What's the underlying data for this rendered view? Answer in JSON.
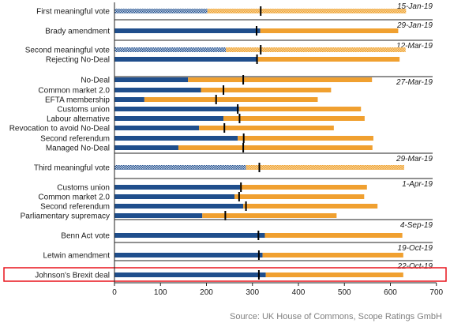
{
  "chart_data": {
    "type": "bar",
    "orientation": "horizontal",
    "stacked": true,
    "xlim": [
      0,
      700
    ],
    "xticks": [
      0,
      100,
      200,
      300,
      400,
      500,
      600,
      700
    ],
    "grid": false,
    "colors": {
      "first": "#1f4e8c",
      "second": "#f0a030",
      "marker": "#000000",
      "highlight": "#e8141c"
    },
    "groups": [
      {
        "date": "15-Jan-19",
        "bars": [
          {
            "label": "First meaningful vote",
            "first": 202,
            "second": 432,
            "marker": 318,
            "hatched": true
          }
        ]
      },
      {
        "date": "29-Jan-19",
        "bars": [
          {
            "label": "Brady amendment",
            "first": 317,
            "second": 300,
            "marker": 309,
            "hatched": false
          }
        ]
      },
      {
        "date": "12-Mar-19",
        "bars": [
          {
            "label": "Second meaningful vote",
            "first": 242,
            "second": 391,
            "marker": 318,
            "hatched": true
          },
          {
            "label": "Rejecting No-Deal",
            "first": 312,
            "second": 308,
            "marker": 310,
            "hatched": false
          }
        ]
      },
      {
        "date": "27-Mar-19",
        "bars": [
          {
            "label": "No-Deal",
            "first": 160,
            "second": 400,
            "marker": 280,
            "hatched": false
          },
          {
            "label": "Common market 2.0",
            "first": 188,
            "second": 283,
            "marker": 237,
            "hatched": false
          },
          {
            "label": "EFTA membership",
            "first": 65,
            "second": 377,
            "marker": 221,
            "hatched": false
          },
          {
            "label": "Customs union",
            "first": 271,
            "second": 265,
            "marker": 268,
            "hatched": false
          },
          {
            "label": "Labour alternative",
            "first": 237,
            "second": 307,
            "marker": 272,
            "hatched": false
          },
          {
            "label": "Revocation to avoid No-Deal",
            "first": 184,
            "second": 293,
            "marker": 239,
            "hatched": false
          },
          {
            "label": "Second referendum",
            "first": 268,
            "second": 295,
            "marker": 281,
            "hatched": false
          },
          {
            "label": "Managed No-Deal",
            "first": 139,
            "second": 422,
            "marker": 280,
            "hatched": false
          }
        ]
      },
      {
        "date": "29-Mar-19",
        "bars": [
          {
            "label": "Third meaningful vote",
            "first": 286,
            "second": 344,
            "marker": 315,
            "hatched": true
          }
        ]
      },
      {
        "date": "1-Apr-19",
        "bars": [
          {
            "label": "Customs union",
            "first": 273,
            "second": 276,
            "marker": 275,
            "hatched": false
          },
          {
            "label": "Common market 2.0",
            "first": 261,
            "second": 282,
            "marker": 271,
            "hatched": false
          },
          {
            "label": "Second referendum",
            "first": 280,
            "second": 292,
            "marker": 286,
            "hatched": false
          },
          {
            "label": "Parliamentary supremacy",
            "first": 191,
            "second": 292,
            "marker": 241,
            "hatched": false
          }
        ]
      },
      {
        "date": "4-Sep-19",
        "bars": [
          {
            "label": "Benn Act vote",
            "first": 327,
            "second": 299,
            "marker": 313,
            "hatched": false
          }
        ]
      },
      {
        "date": "19-Oct-19",
        "bars": [
          {
            "label": "Letwin amendment",
            "first": 322,
            "second": 306,
            "marker": 314,
            "hatched": false
          }
        ]
      },
      {
        "date": "22-Oct-19",
        "highlighted": true,
        "bars": [
          {
            "label": "Johnson's Brexit deal",
            "first": 329,
            "second": 299,
            "marker": 314,
            "hatched": false
          }
        ]
      }
    ]
  },
  "source": "Source: UK House of Commons, Scope Ratings GmbH"
}
